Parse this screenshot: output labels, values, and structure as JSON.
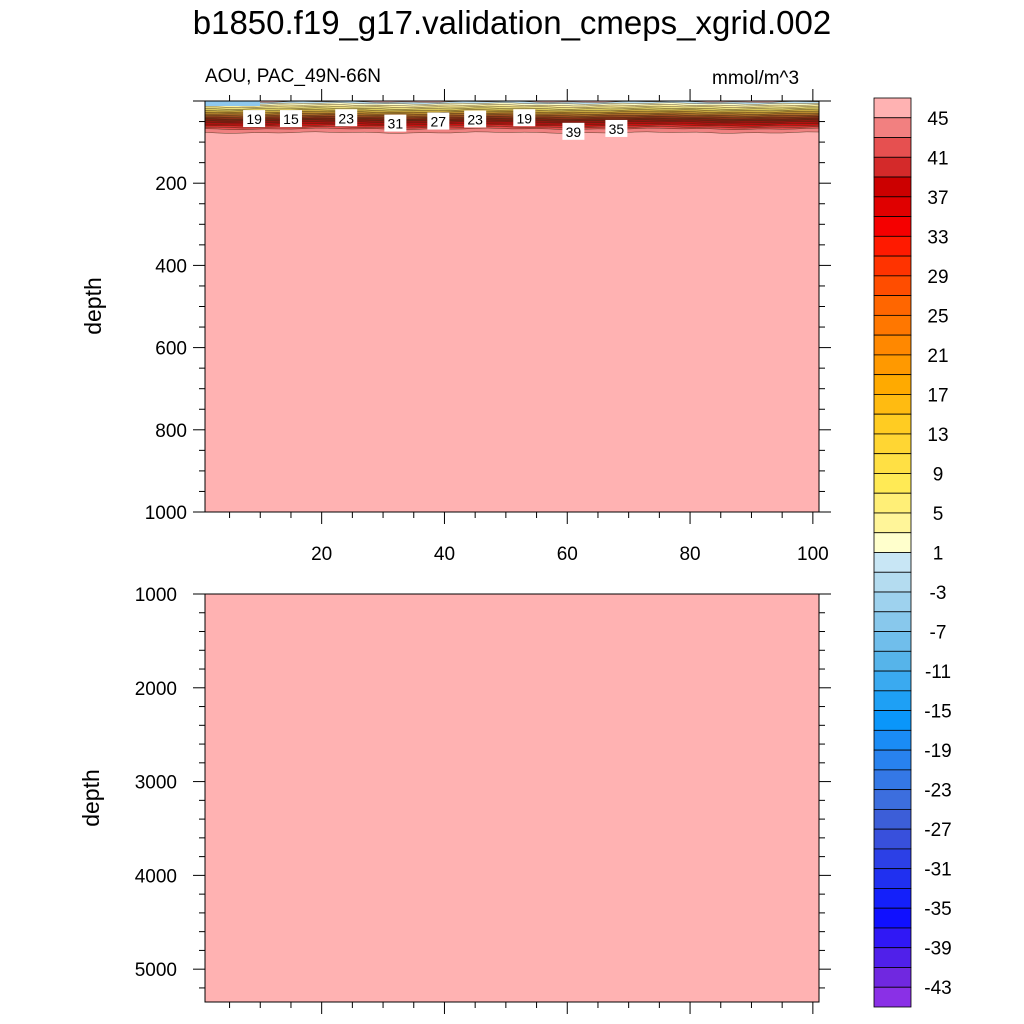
{
  "title": "b1850.f19_g17.validation_cmeps_xgrid.002",
  "panel_left_label": "AOU, PAC_49N-66N",
  "panel_right_label": "mmol/m^3",
  "chart_data": [
    {
      "type": "heatmap",
      "panel": "upper",
      "title": "AOU, PAC_49N-66N",
      "units": "mmol/m^3",
      "xlim": [
        1,
        101
      ],
      "ylim": [
        1000,
        0
      ],
      "ylabel": "depth",
      "xticks": [
        20,
        40,
        60,
        80,
        100
      ],
      "yticks": [
        200,
        400,
        600,
        800,
        1000
      ],
      "field_value_below_100m": 47,
      "contour_labels": [
        {
          "x": 9,
          "depth": 44,
          "value": 19
        },
        {
          "x": 15,
          "depth": 44,
          "value": 15
        },
        {
          "x": 24,
          "depth": 42,
          "value": 23
        },
        {
          "x": 32,
          "depth": 55,
          "value": 31
        },
        {
          "x": 39,
          "depth": 50,
          "value": 27
        },
        {
          "x": 45,
          "depth": 45,
          "value": 23
        },
        {
          "x": 53,
          "depth": 42,
          "value": 19
        },
        {
          "x": 61,
          "depth": 75,
          "value": 39
        },
        {
          "x": 68,
          "depth": 68,
          "value": 35
        }
      ]
    },
    {
      "type": "heatmap",
      "panel": "lower",
      "xlim": [
        1,
        101
      ],
      "ylim": [
        5350,
        1000
      ],
      "ylabel": "depth",
      "yticks": [
        1000,
        2000,
        3000,
        4000,
        5000
      ],
      "field_value": 47
    }
  ],
  "colorbar": {
    "labels": [
      "45",
      "41",
      "37",
      "33",
      "29",
      "25",
      "21",
      "17",
      "13",
      "9",
      "5",
      "1",
      "-3",
      "-7",
      "-11",
      "-15",
      "-19",
      "-23",
      "-27",
      "-31",
      "-35",
      "-39",
      "-43"
    ],
    "colors": [
      "#ffb2b2",
      "#f28080",
      "#e65050",
      "#d42a2a",
      "#cc0000",
      "#e00000",
      "#f50000",
      "#ff1a00",
      "#ff3300",
      "#ff4d00",
      "#ff6600",
      "#ff7700",
      "#ff8800",
      "#ff9900",
      "#ffaa00",
      "#ffbb11",
      "#ffcc22",
      "#ffd633",
      "#ffe044",
      "#ffea55",
      "#ffef77",
      "#fff599",
      "#ffffcc",
      "#c8e6f5",
      "#b4dcf0",
      "#9ed2ee",
      "#88c8ec",
      "#70beeb",
      "#56b4ea",
      "#3aaaf0",
      "#1ea0f5",
      "#0a96fa",
      "#1a8cf5",
      "#2882ee",
      "#3478e6",
      "#3c6ede",
      "#3c5ed8",
      "#3850dc",
      "#2c40e6",
      "#2030f0",
      "#1420fa",
      "#1010ff",
      "#3018f5",
      "#5020ea",
      "#7028e0",
      "#8a30e6"
    ]
  }
}
